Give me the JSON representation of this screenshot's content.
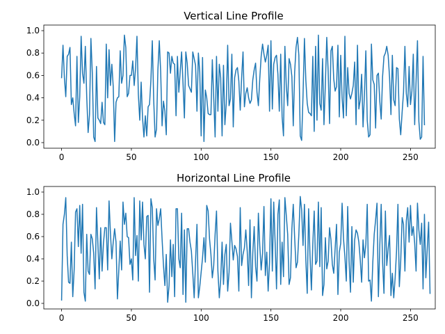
{
  "chart_data": [
    {
      "type": "line",
      "title": "Vertical Line Profile",
      "xlabel": "",
      "ylabel": "",
      "xlim": [
        -12.75,
        267.75
      ],
      "ylim": [
        -0.05,
        1.05
      ],
      "xticks": [
        0,
        50,
        100,
        150,
        200,
        250
      ],
      "yticks": [
        0.0,
        0.2,
        0.4,
        0.6,
        0.8,
        1.0
      ],
      "grid": false,
      "color": "#1f77b4",
      "x_start": 0,
      "x_step": 1,
      "values": [
        0.58,
        0.87,
        0.58,
        0.41,
        0.77,
        0.79,
        0.85,
        0.34,
        0.4,
        0.26,
        0.15,
        0.77,
        0.18,
        0.41,
        0.95,
        0.62,
        0.53,
        0.86,
        0.41,
        0.09,
        0.25,
        0.93,
        0.62,
        0.05,
        0.01,
        0.68,
        0.22,
        0.2,
        0.17,
        0.36,
        0.18,
        0.16,
        0.88,
        0.4,
        0.83,
        0.51,
        0.7,
        0.5,
        0.01,
        0.36,
        0.4,
        0.41,
        0.82,
        0.53,
        0.6,
        0.96,
        0.85,
        0.41,
        0.44,
        0.6,
        0.6,
        0.73,
        0.51,
        0.66,
        0.95,
        0.43,
        0.2,
        0.54,
        0.22,
        0.05,
        0.24,
        0.06,
        0.32,
        0.34,
        0.56,
        0.91,
        0.38,
        0.05,
        0.12,
        0.65,
        0.91,
        0.63,
        0.15,
        0.37,
        0.28,
        0.07,
        0.81,
        0.8,
        0.62,
        0.77,
        0.71,
        0.7,
        0.24,
        0.77,
        0.45,
        0.64,
        0.81,
        0.53,
        0.22,
        0.81,
        0.71,
        0.51,
        0.48,
        0.45,
        0.81,
        0.75,
        0.69,
        0.28,
        0.8,
        0.63,
        0.06,
        0.76,
        0.01,
        0.47,
        0.4,
        0.26,
        0.25,
        0.25,
        0.74,
        0.4,
        0.05,
        0.77,
        0.28,
        0.7,
        0.58,
        0.06,
        0.69,
        0.16,
        0.35,
        0.87,
        0.33,
        0.39,
        0.79,
        0.14,
        0.58,
        0.65,
        0.67,
        0.55,
        0.29,
        0.58,
        0.81,
        0.32,
        0.44,
        0.49,
        0.4,
        0.35,
        0.38,
        0.56,
        0.65,
        0.71,
        0.45,
        0.33,
        0.57,
        0.77,
        0.88,
        0.79,
        0.72,
        0.78,
        0.87,
        0.28,
        0.91,
        0.3,
        0.7,
        0.76,
        0.78,
        0.61,
        0.28,
        0.79,
        0.23,
        0.06,
        0.86,
        0.51,
        0.33,
        0.75,
        0.7,
        0.59,
        0.15,
        0.63,
        0.85,
        0.94,
        0.78,
        0.06,
        0.02,
        0.42,
        0.93,
        0.56,
        0.35,
        0.27,
        0.26,
        0.24,
        0.77,
        0.1,
        0.86,
        0.2,
        0.96,
        0.35,
        0.29,
        0.75,
        0.16,
        0.52,
        0.94,
        0.64,
        0.17,
        0.82,
        0.86,
        0.57,
        0.46,
        0.5,
        0.87,
        0.23,
        0.78,
        0.4,
        0.22,
        0.95,
        0.24,
        0.67,
        0.44,
        0.39,
        0.44,
        0.51,
        0.72,
        0.16,
        0.87,
        0.3,
        0.38,
        0.61,
        0.14,
        0.43,
        0.82,
        0.2,
        0.05,
        0.07,
        0.88,
        0.56,
        0.52,
        0.13,
        0.6,
        0.62,
        0.37,
        0.21,
        0.59,
        0.77,
        0.8,
        0.86,
        0.78,
        0.58,
        0.25,
        0.78,
        0.38,
        0.33,
        0.67,
        0.66,
        0.21,
        0.07,
        0.27,
        0.45,
        0.86,
        0.44,
        0.32,
        0.68,
        0.34,
        0.46,
        0.79,
        0.16,
        0.55,
        0.91,
        0.19,
        0.03,
        0.05,
        0.77,
        0.16
      ]
    },
    {
      "type": "line",
      "title": "Horizontal Line Profile",
      "xlabel": "",
      "ylabel": "",
      "xlim": [
        -12.75,
        267.75
      ],
      "ylim": [
        -0.05,
        1.05
      ],
      "xticks": [
        0,
        50,
        100,
        150,
        200,
        250
      ],
      "yticks": [
        0.0,
        0.2,
        0.4,
        0.6,
        0.8,
        1.0
      ],
      "grid": false,
      "color": "#1f77b4",
      "x_start": 0,
      "x_step": 1,
      "values": [
        0.03,
        0.71,
        0.8,
        0.95,
        0.43,
        0.19,
        0.18,
        0.55,
        0.06,
        0.3,
        0.82,
        0.85,
        0.51,
        0.88,
        0.45,
        0.89,
        0.1,
        0.02,
        0.62,
        0.29,
        0.26,
        0.62,
        0.58,
        0.45,
        0.13,
        0.86,
        0.54,
        0.22,
        0.68,
        0.29,
        0.54,
        0.68,
        0.68,
        0.3,
        0.92,
        0.63,
        0.4,
        0.55,
        0.67,
        0.55,
        0.04,
        0.3,
        0.56,
        0.3,
        0.91,
        0.71,
        0.81,
        0.6,
        0.59,
        0.35,
        0.4,
        0.21,
        0.95,
        0.43,
        0.61,
        0.2,
        0.92,
        0.57,
        0.91,
        0.53,
        0.4,
        0.78,
        0.79,
        0.1,
        0.94,
        0.86,
        0.4,
        0.21,
        0.85,
        0.7,
        0.76,
        0.85,
        0.58,
        0.34,
        0.16,
        0.44,
        0.01,
        0.16,
        0.57,
        0.24,
        0.53,
        0.06,
        0.85,
        0.85,
        0.4,
        0.32,
        0.81,
        0.08,
        0.66,
        0.01,
        0.67,
        0.67,
        0.55,
        0.47,
        0.27,
        0.05,
        0.39,
        0.71,
        0.05,
        0.15,
        0.28,
        0.41,
        0.59,
        0.37,
        0.88,
        0.83,
        0.58,
        0.44,
        0.23,
        0.34,
        0.62,
        0.83,
        0.29,
        0.05,
        0.21,
        0.55,
        0.17,
        0.44,
        0.53,
        0.11,
        0.28,
        0.72,
        0.56,
        0.39,
        0.52,
        0.49,
        0.42,
        0.11,
        0.86,
        0.34,
        0.44,
        0.5,
        0.66,
        0.47,
        0.16,
        0.75,
        0.05,
        0.45,
        0.69,
        0.33,
        0.2,
        0.81,
        0.52,
        0.3,
        0.45,
        0.87,
        0.25,
        0.46,
        0.11,
        0.37,
        0.94,
        0.29,
        0.91,
        0.55,
        0.13,
        0.8,
        0.93,
        0.17,
        0.55,
        0.24,
        0.95,
        0.79,
        0.62,
        0.17,
        0.23,
        0.67,
        0.89,
        0.59,
        0.32,
        0.37,
        0.62,
        0.96,
        0.84,
        0.52,
        0.89,
        0.39,
        0.09,
        0.85,
        0.43,
        0.12,
        0.53,
        0.83,
        0.35,
        0.38,
        0.91,
        0.33,
        0.86,
        0.07,
        0.17,
        0.59,
        0.31,
        0.38,
        0.68,
        0.57,
        0.35,
        0.27,
        0.49,
        0.71,
        0.08,
        0.46,
        0.54,
        0.9,
        0.58,
        0.42,
        0.2,
        0.87,
        0.38,
        0.1,
        0.69,
        0.19,
        0.57,
        0.66,
        0.63,
        0.55,
        0.39,
        0.19,
        0.57,
        0.41,
        0.53,
        0.89,
        0.2,
        0.21,
        0.02,
        0.37,
        0.62,
        0.75,
        0.9,
        0.06,
        0.52,
        0.89,
        0.37,
        0.09,
        0.83,
        0.34,
        0.49,
        0.61,
        0.07,
        0.27,
        0.05,
        0.23,
        0.47,
        0.89,
        0.15,
        0.38,
        0.77,
        0.71,
        0.29,
        0.74,
        0.86,
        0.55,
        0.88,
        0.61,
        0.69,
        0.54,
        0.29,
        0.9,
        0.66,
        0.53,
        0.72,
        0.13,
        0.8,
        0.23,
        0.49,
        0.73,
        0.09
      ]
    }
  ]
}
